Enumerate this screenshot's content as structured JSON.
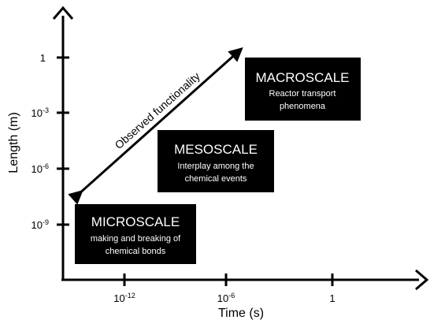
{
  "axes": {
    "x_title": "Time (s)",
    "y_title": "Length (m)",
    "x_ticks": [
      {
        "base": "10",
        "exp": "-12"
      },
      {
        "base": "10",
        "exp": "-6"
      },
      {
        "base": "1",
        "exp": ""
      }
    ],
    "y_ticks": [
      {
        "base": "1",
        "exp": ""
      },
      {
        "base": "10",
        "exp": "-3"
      },
      {
        "base": "10",
        "exp": "-6"
      },
      {
        "base": "10",
        "exp": "-9"
      }
    ]
  },
  "arrow_label": "Observed functionality",
  "boxes": {
    "micro": {
      "title": "MICROSCALE",
      "line1": "making and breaking of",
      "line2": "chemical bonds"
    },
    "meso": {
      "title": "MESOSCALE",
      "line1": "Interplay among the",
      "line2": "chemical events"
    },
    "macro": {
      "title": "MACROSCALE",
      "line1": "Reactor transport",
      "line2": "phenomena"
    }
  },
  "colors": {
    "box_fill": "#000000",
    "box_text": "#ffffff",
    "axis": "#000000"
  }
}
